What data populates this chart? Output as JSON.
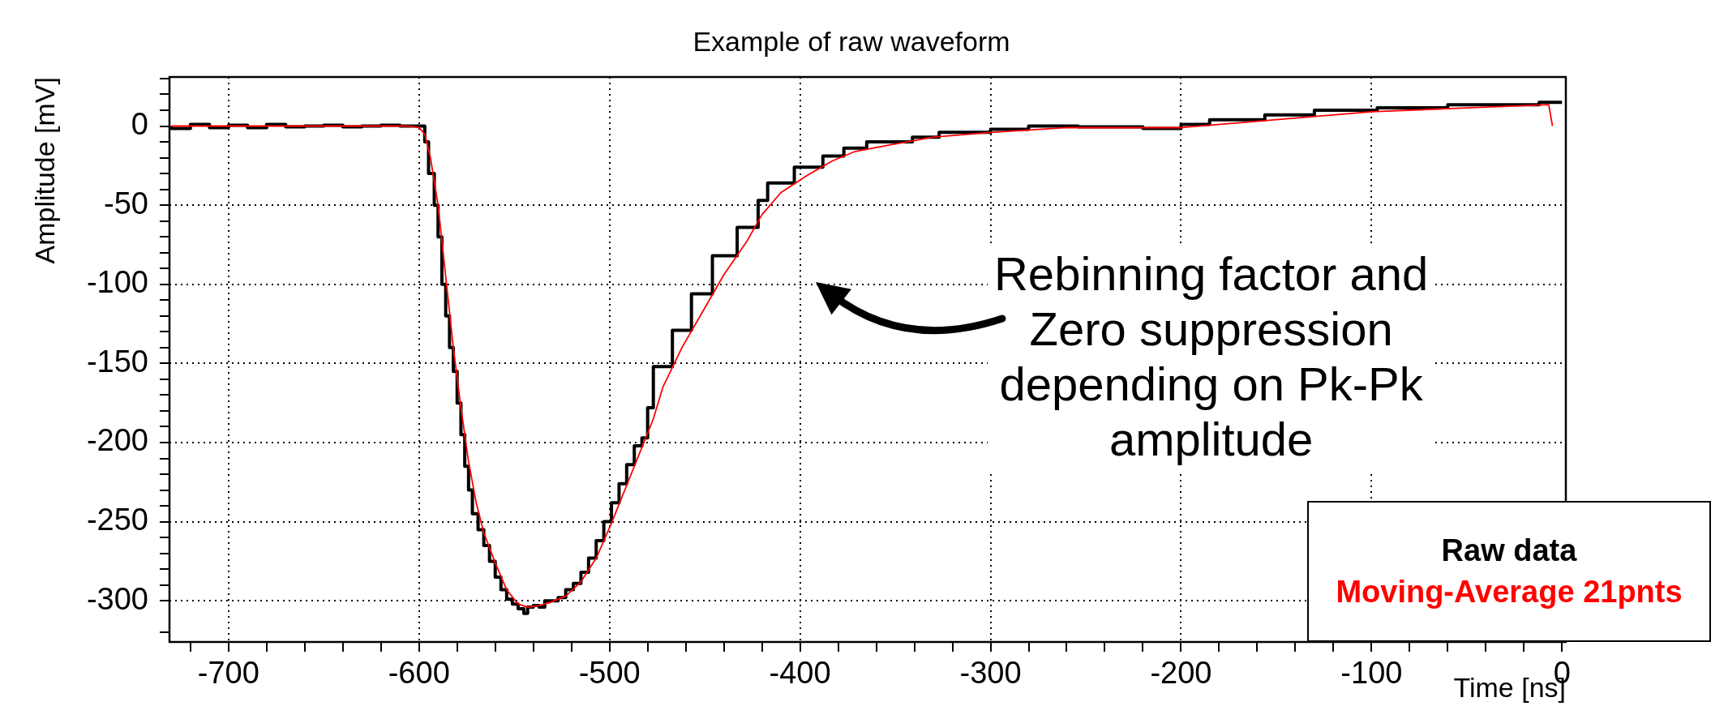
{
  "chart_data": {
    "type": "line",
    "title": "Example of raw waveform",
    "xlabel": "Time [ns]",
    "ylabel": "Amplitude [mV]",
    "xlim": [
      -731,
      2
    ],
    "ylim": [
      -326,
      31
    ],
    "xticks": [
      {
        "value": -720,
        "label": null
      },
      -700,
      {
        "value": -680,
        "label": null
      },
      {
        "value": -660,
        "label": null
      },
      {
        "value": -640,
        "label": null
      },
      {
        "value": -620,
        "label": null
      },
      -600,
      {
        "value": -580,
        "label": null
      },
      {
        "value": -560,
        "label": null
      },
      {
        "value": -540,
        "label": null
      },
      {
        "value": -520,
        "label": null
      },
      -500,
      {
        "value": -480,
        "label": null
      },
      {
        "value": -460,
        "label": null
      },
      {
        "value": -440,
        "label": null
      },
      {
        "value": -420,
        "label": null
      },
      -400,
      {
        "value": -380,
        "label": null
      },
      {
        "value": -360,
        "label": null
      },
      {
        "value": -340,
        "label": null
      },
      {
        "value": -320,
        "label": null
      },
      -300,
      {
        "value": -280,
        "label": null
      },
      {
        "value": -260,
        "label": null
      },
      {
        "value": -240,
        "label": null
      },
      {
        "value": -220,
        "label": null
      },
      -200,
      {
        "value": -180,
        "label": null
      },
      {
        "value": -160,
        "label": null
      },
      {
        "value": -140,
        "label": null
      },
      {
        "value": -120,
        "label": null
      },
      -100,
      {
        "value": -80,
        "label": null
      },
      {
        "value": -60,
        "label": null
      },
      {
        "value": -40,
        "label": null
      },
      {
        "value": -20,
        "label": null
      },
      0
    ],
    "yticks": [
      {
        "value": -320,
        "label": null
      },
      -300,
      {
        "value": -290,
        "label": null
      },
      {
        "value": -280,
        "label": null
      },
      {
        "value": -270,
        "label": null
      },
      {
        "value": -260,
        "label": null
      },
      -250,
      {
        "value": -240,
        "label": null
      },
      {
        "value": -230,
        "label": null
      },
      {
        "value": -220,
        "label": null
      },
      {
        "value": -210,
        "label": null
      },
      -200,
      {
        "value": -190,
        "label": null
      },
      {
        "value": -180,
        "label": null
      },
      {
        "value": -170,
        "label": null
      },
      {
        "value": -160,
        "label": null
      },
      -150,
      {
        "value": -140,
        "label": null
      },
      {
        "value": -130,
        "label": null
      },
      {
        "value": -120,
        "label": null
      },
      {
        "value": -110,
        "label": null
      },
      -100,
      {
        "value": -90,
        "label": null
      },
      {
        "value": -80,
        "label": null
      },
      {
        "value": -70,
        "label": null
      },
      {
        "value": -60,
        "label": null
      },
      -50,
      {
        "value": -40,
        "label": null
      },
      {
        "value": -30,
        "label": null
      },
      {
        "value": -20,
        "label": null
      },
      {
        "value": -10,
        "label": null
      },
      0,
      {
        "value": 10,
        "label": null
      },
      {
        "value": 20,
        "label": null
      },
      {
        "value": 30,
        "label": null
      }
    ],
    "grid": true,
    "legend": "bottom right",
    "annotations": [
      "Rebinning factor and Zero suppression depending on Pk-Pk amplitude"
    ],
    "series": [
      {
        "name": "Raw data",
        "type": "step",
        "color": "#000000",
        "x": [
          -730,
          -720,
          -710,
          -700,
          -690,
          -680,
          -670,
          -660,
          -650,
          -640,
          -630,
          -620,
          -610,
          -600,
          -597,
          -595,
          -592,
          -590,
          -588,
          -586,
          -584,
          -582,
          -580,
          -578,
          -576,
          -574,
          -572,
          -569,
          -566,
          -563,
          -560,
          -557,
          -554,
          -551,
          -548,
          -545,
          -543,
          -540,
          -537,
          -534,
          -531,
          -527,
          -523,
          -519,
          -515,
          -511,
          -507,
          -503,
          -499,
          -495,
          -491,
          -487,
          -483,
          -480,
          -477,
          -467,
          -457,
          -446,
          -433,
          -422,
          -417,
          -403,
          -388,
          -377,
          -365,
          -341,
          -327,
          -300,
          -280,
          -254,
          -220,
          -200,
          -185,
          -156,
          -130,
          -97,
          -60,
          -12,
          0
        ],
        "values": [
          0,
          -1.5,
          1,
          -1,
          0.5,
          -1,
          1,
          -0.5,
          0,
          0.5,
          -0.5,
          0,
          0.5,
          0,
          0,
          -10,
          -30,
          -50,
          -70,
          -100,
          -120,
          -140,
          -155,
          -175,
          -195,
          -215,
          -230,
          -245,
          -255,
          -265,
          -275,
          -285,
          -293,
          -299,
          -302,
          -305,
          -308,
          -304,
          -303,
          -304,
          -300,
          -300,
          -298,
          -293,
          -289,
          -282,
          -273,
          -262,
          -250,
          -238,
          -226,
          -214,
          -202,
          -197,
          -178,
          -152,
          -129,
          -106,
          -82,
          -64,
          -47,
          -36,
          -26,
          -19,
          -14,
          -10,
          -7,
          -4,
          -2,
          0,
          -0.5,
          -1.5,
          1,
          4,
          7,
          10,
          11.5,
          13.5,
          15
        ]
      },
      {
        "name": "Moving-Average 21pnts",
        "color": "#ff0000",
        "x": [
          -730,
          -605,
          -600,
          -597,
          -594,
          -590,
          -586,
          -582,
          -578,
          -574,
          -570,
          -566,
          -560,
          -554,
          -548,
          -543,
          -537,
          -531,
          -523,
          -515,
          -507,
          -499,
          -491,
          -483,
          -477,
          -472,
          -462,
          -451,
          -440,
          -428,
          -420,
          -410,
          -396,
          -383,
          -371,
          -353,
          -330,
          -300,
          -260,
          -200,
          -150,
          -100,
          -50,
          -7,
          -5
        ],
        "values": [
          0,
          0,
          -1,
          -5,
          -20,
          -50,
          -95,
          -140,
          -178,
          -212,
          -238,
          -257,
          -276,
          -293,
          -302,
          -304,
          -303,
          -301,
          -297,
          -288,
          -273,
          -251,
          -227,
          -203,
          -185,
          -165,
          -140,
          -117,
          -94,
          -73,
          -56,
          -42,
          -31,
          -22,
          -16,
          -12,
          -7,
          -4,
          -1,
          -1,
          4,
          9,
          11.5,
          13.5,
          0
        ]
      }
    ]
  }
}
